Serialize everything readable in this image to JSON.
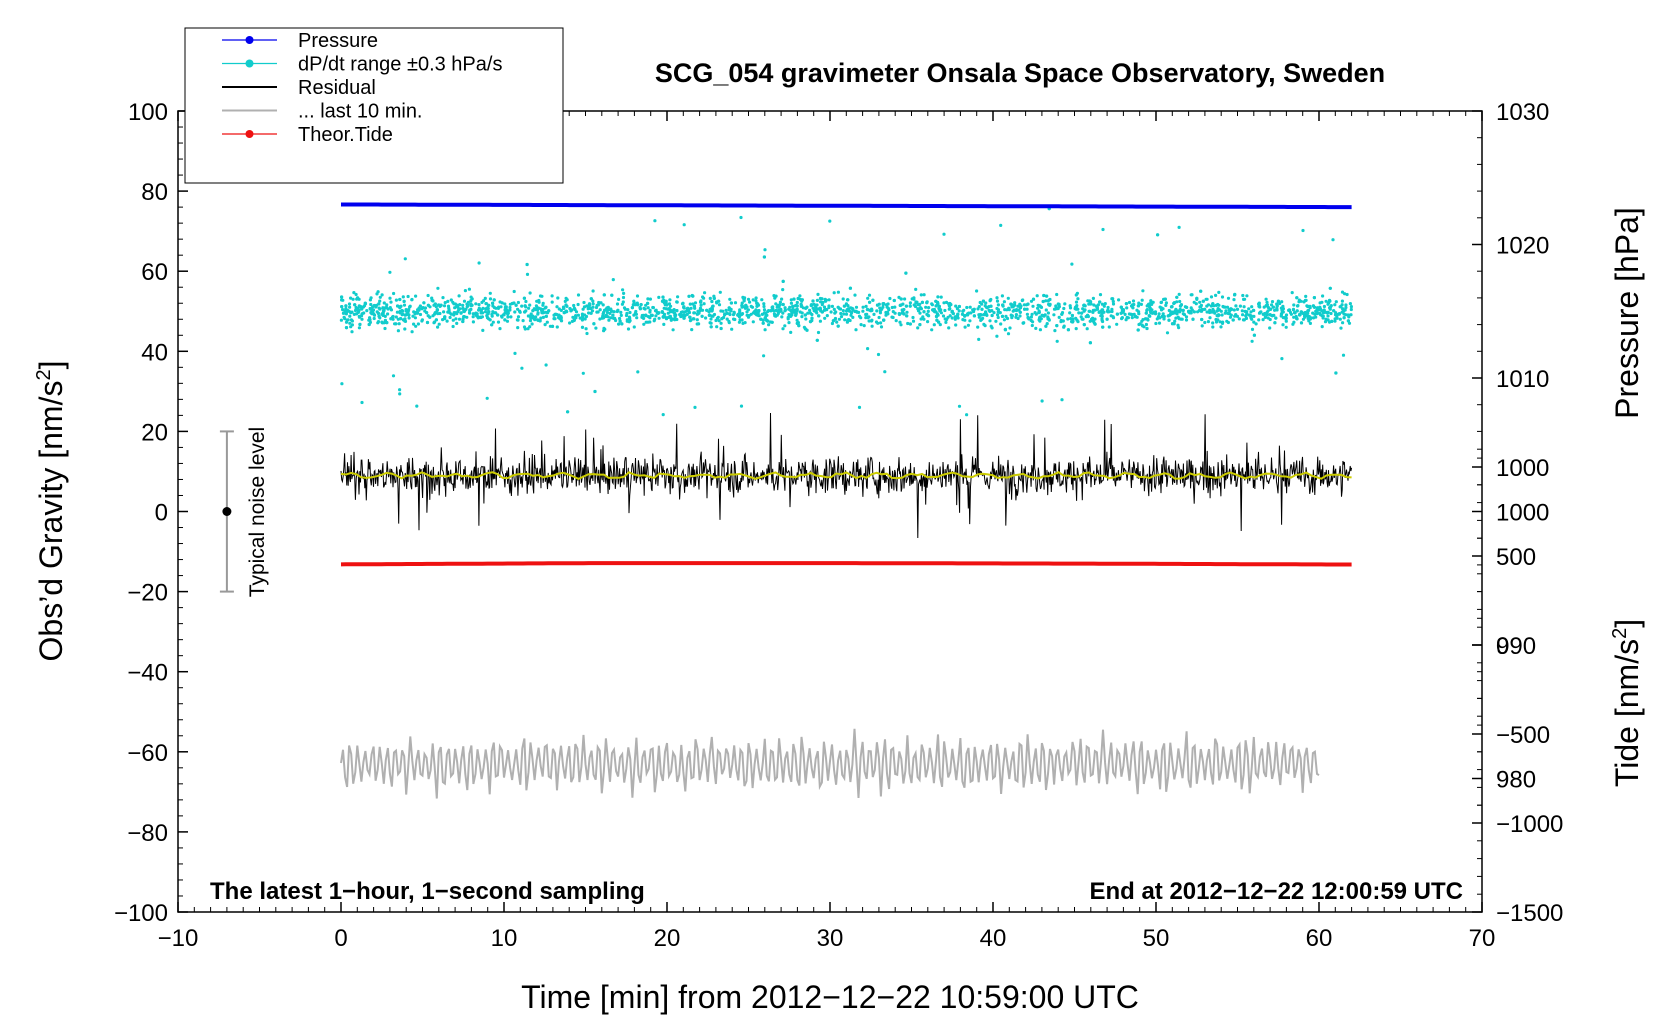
{
  "chart_data": {
    "type": "line",
    "title": "SCG_054 gravimeter Onsala Space Observatory, Sweden",
    "xlabel": "Time [min] from 2012−12−22 10:59:00 UTC",
    "ylabel_left_main": "Obs’d Gravity [nm/s",
    "ylabel_left_sup": "2",
    "ylabel_left_close": "]",
    "ylabel_right_pressure": "Pressure [hPa]",
    "ylabel_right_tide_main": "Tide [nm/s",
    "ylabel_right_tide_sup": "2",
    "ylabel_right_tide_close": "]",
    "xlim": [
      -10,
      70
    ],
    "ylim_left": [
      -100,
      100
    ],
    "ylim_pressure": [
      970,
      1030
    ],
    "ylim_tide": [
      -1500,
      3000
    ],
    "x_ticks": [
      "−10",
      "0",
      "10",
      "20",
      "30",
      "40",
      "50",
      "60",
      "70"
    ],
    "x_tick_values": [
      -10,
      0,
      10,
      20,
      30,
      40,
      50,
      60,
      70
    ],
    "y_left_ticks": [
      "100",
      "80",
      "60",
      "40",
      "20",
      "0",
      "−20",
      "−40",
      "−60",
      "−80",
      "−100"
    ],
    "y_left_tick_values": [
      100,
      80,
      60,
      40,
      20,
      0,
      -20,
      -40,
      -60,
      -80,
      -100
    ],
    "y_pressure_ticks": [
      "1030",
      "1020",
      "1010",
      "1000",
      "990",
      "980"
    ],
    "y_pressure_tick_values": [
      1030,
      1020,
      1010,
      1000,
      990,
      980
    ],
    "y_tide_ticks": [
      "1000",
      "500",
      "0",
      "−500",
      "−1000",
      "−1500"
    ],
    "y_tide_tick_values": [
      1000,
      500,
      0,
      -500,
      -1000,
      -1500
    ],
    "legend_position": "top-left",
    "legend": [
      {
        "label": "Pressure",
        "color": "#0000ee",
        "marker": true
      },
      {
        "label": "dP/dt range ±0.3 hPa/s",
        "color": "#11cccc",
        "marker": true
      },
      {
        "label": "Residual",
        "color": "#000000",
        "marker": false
      },
      {
        "label": "... last 10 min.",
        "color": "#b0b0b0",
        "marker": false
      },
      {
        "label": "Theor.Tide",
        "color": "#ee1111",
        "marker": true
      }
    ],
    "series": [
      {
        "name": "Pressure",
        "axis": "pressure",
        "x_range": [
          0,
          62
        ],
        "values_start": 1023,
        "values_end": 1022.8
      },
      {
        "name": "dP/dt range ±0.3 hPa/s",
        "axis": "left",
        "x_range": [
          0,
          62
        ],
        "center": 50,
        "spread_typical": 4,
        "spread_max": 20
      },
      {
        "name": "Residual",
        "axis": "left",
        "x_range": [
          0,
          62
        ],
        "center": 9,
        "spread_typical": 6,
        "spread_max": 16,
        "smoothed_center": 9
      },
      {
        "name": "... last 10 min.",
        "axis": "left",
        "x_range": [
          0,
          60
        ],
        "center": -63,
        "spread_typical": 6,
        "spread_max": 15
      },
      {
        "name": "Theor.Tide",
        "axis": "tide",
        "x_range": [
          0,
          62
        ],
        "values": [
          453,
          460,
          460,
          457,
          452
        ]
      }
    ],
    "noise_bar": {
      "label": "Typical noise level",
      "x": -7,
      "y_center": 0,
      "y_low": -20,
      "y_high": 20
    },
    "annotation_left": "The latest 1−hour, 1−second sampling",
    "annotation_right": "End at 2012−12−22 12:00:59 UTC",
    "colors": {
      "pressure": "#0000ee",
      "dpdt": "#11cccc",
      "residual": "#000000",
      "residual_smooth": "#cccc00",
      "last10": "#b0b0b0",
      "tide": "#ee1111"
    }
  }
}
